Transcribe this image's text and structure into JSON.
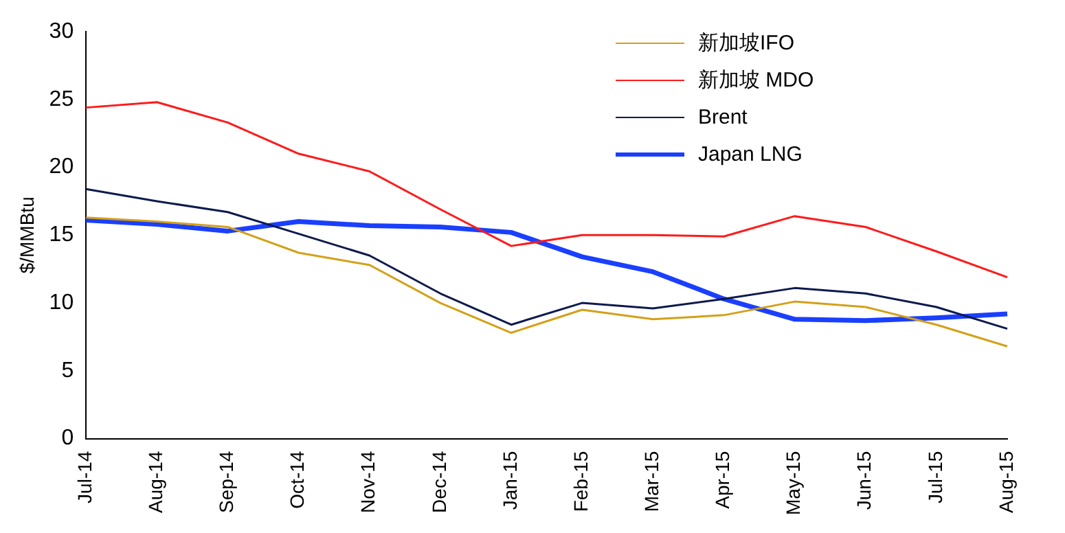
{
  "chart_data": {
    "type": "line",
    "ylabel": "$/MMBtu",
    "categories": [
      "Jul-14",
      "Aug-14",
      "Sep-14",
      "Oct-14",
      "Nov-14",
      "Dec-14",
      "Jan-15",
      "Feb-15",
      "Mar-15",
      "Apr-15",
      "May-15",
      "Jun-15",
      "Jul-15",
      "Aug-15"
    ],
    "series": [
      {
        "name": "新加坡IFO",
        "color": "#d4a017",
        "values": [
          16.3,
          16.0,
          15.6,
          13.7,
          12.8,
          10.0,
          7.8,
          9.5,
          8.8,
          9.1,
          10.1,
          9.7,
          8.4,
          6.8
        ]
      },
      {
        "name": "新加坡 MDO",
        "color": "#ff1a1a",
        "values": [
          24.4,
          24.8,
          23.3,
          21.0,
          19.7,
          16.9,
          14.2,
          15.0,
          15.0,
          14.9,
          16.4,
          15.6,
          13.8,
          11.9
        ]
      },
      {
        "name": "Brent",
        "color": "#0d1a4d",
        "values": [
          18.4,
          17.5,
          16.7,
          15.1,
          13.5,
          10.7,
          8.4,
          10.0,
          9.6,
          10.3,
          11.1,
          10.7,
          9.7,
          8.1
        ]
      },
      {
        "name": "Japan LNG",
        "color": "#1a3fff",
        "values": [
          16.1,
          15.8,
          15.3,
          16.0,
          15.7,
          15.6,
          15.2,
          13.4,
          12.3,
          10.3,
          8.8,
          8.7,
          8.9,
          9.2
        ]
      }
    ],
    "ylim": [
      0,
      30
    ],
    "yticks": [
      0,
      5,
      10,
      15,
      20,
      25,
      30
    ],
    "grid": false,
    "legend": "top right",
    "marker": "none",
    "line_style": "solid"
  }
}
